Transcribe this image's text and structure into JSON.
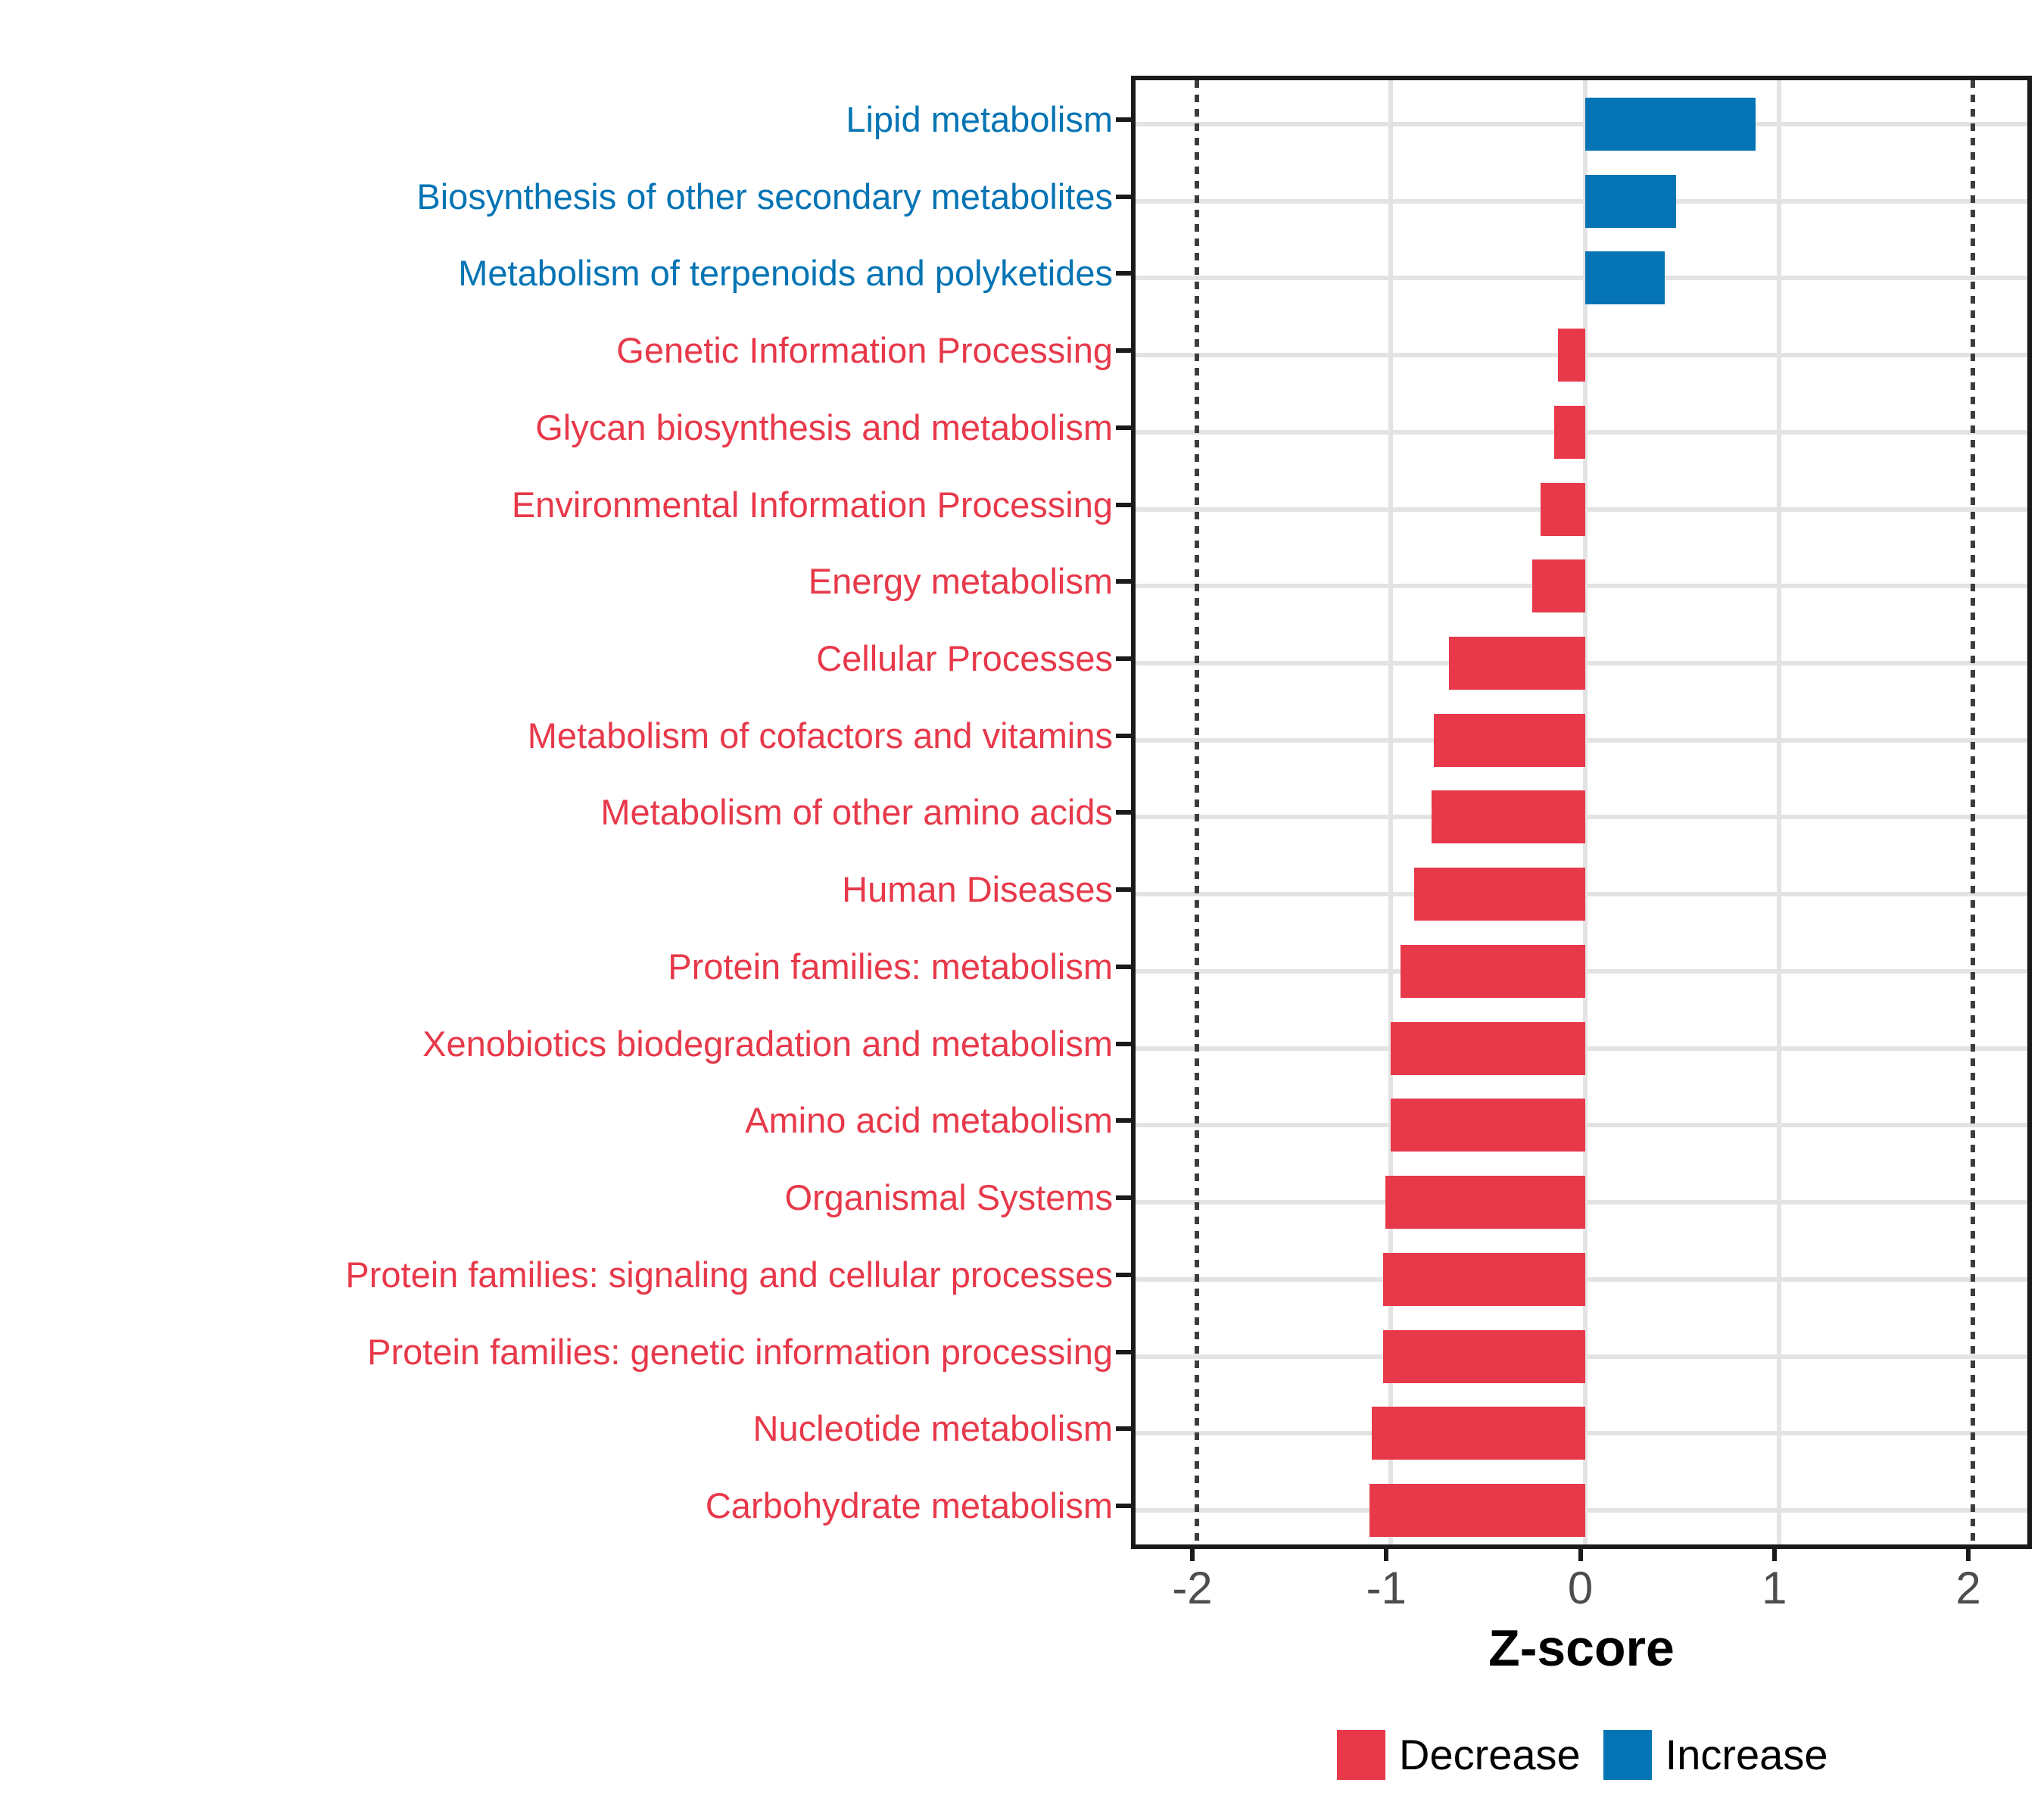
{
  "chart_data": {
    "type": "bar",
    "orientation": "horizontal",
    "order": "top-to-bottom",
    "xlabel": "Z-score",
    "xlim": [
      -2.32,
      2.33
    ],
    "x_ticks": [
      -2,
      -1,
      0,
      1,
      2
    ],
    "x_tick_labels": [
      "-2",
      "-1",
      "0",
      "1",
      "2"
    ],
    "reference_lines": [
      -2,
      2
    ],
    "grid": "major-only",
    "legend_position": "bottom",
    "categories": [
      "Lipid metabolism",
      "Biosynthesis of other secondary metabolites",
      "Metabolism of terpenoids and polyketides",
      "Genetic Information Processing",
      "Glycan biosynthesis and metabolism",
      "Environmental Information Processing",
      "Energy metabolism",
      "Cellular Processes",
      "Metabolism of cofactors and vitamins",
      "Metabolism of other amino acids",
      "Human Diseases",
      "Protein families: metabolism",
      "Xenobiotics biodegradation and metabolism",
      "Amino acid metabolism",
      "Organismal Systems",
      "Protein families: signaling and cellular processes",
      "Protein families: genetic information processing",
      "Nucleotide metabolism",
      "Carbohydrate metabolism"
    ],
    "values": [
      0.88,
      0.47,
      0.41,
      -0.14,
      -0.16,
      -0.23,
      -0.27,
      -0.7,
      -0.78,
      -0.79,
      -0.88,
      -0.95,
      -1.0,
      -1.0,
      -1.03,
      -1.04,
      -1.04,
      -1.1,
      -1.11
    ],
    "directions": [
      "Increase",
      "Increase",
      "Increase",
      "Decrease",
      "Decrease",
      "Decrease",
      "Decrease",
      "Decrease",
      "Decrease",
      "Decrease",
      "Decrease",
      "Decrease",
      "Decrease",
      "Decrease",
      "Decrease",
      "Decrease",
      "Decrease",
      "Decrease",
      "Decrease"
    ],
    "colors": {
      "Increase": "#0574B4",
      "Decrease": "#E7394A"
    },
    "style_colors": {
      "grid": "#E3E3E3",
      "reference_line": "#3C3C3C",
      "panel_border": "#1A1A1A",
      "tick_label": "#4D4D4D",
      "axis_title": "#000000"
    }
  },
  "legend": {
    "items": [
      {
        "label": "Decrease",
        "color": "#E7394A"
      },
      {
        "label": "Increase",
        "color": "#0574B4"
      }
    ]
  }
}
